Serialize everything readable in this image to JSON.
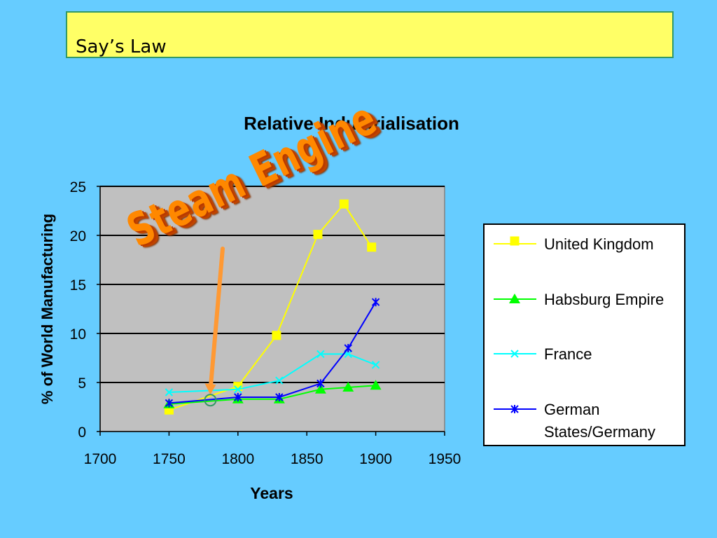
{
  "slide": {
    "title": "Say’s Law",
    "wordart": "Steam Engine"
  },
  "colors": {
    "background": "#66ccff",
    "title_box": "#ffff66",
    "plot_area": "#c0c0c0",
    "arrow": "#ff9933",
    "uk": "#ffff00",
    "habsburg": "#00ff00",
    "france": "#00ffff",
    "germany": "#0000ff"
  },
  "chart_data": {
    "type": "line",
    "title": "Relative Industrialisation",
    "xlabel": "Years",
    "ylabel": "% of World Manufacturing",
    "xlim": [
      1700,
      1950
    ],
    "ylim": [
      0,
      25
    ],
    "xticks": [
      1700,
      1750,
      1800,
      1850,
      1900,
      1950
    ],
    "yticks": [
      0,
      5,
      10,
      15,
      20,
      25
    ],
    "grid": "horizontal",
    "legend": "right",
    "series": [
      {
        "name": "United Kingdom",
        "marker": "square",
        "color": "#ffff00",
        "points": [
          [
            1750,
            2.2
          ],
          [
            1800,
            4.6
          ],
          [
            1828,
            9.8
          ],
          [
            1858,
            20.1
          ],
          [
            1877,
            23.2
          ],
          [
            1897,
            18.8
          ]
        ]
      },
      {
        "name": "Habsburg Empire",
        "marker": "triangle",
        "color": "#00ff00",
        "points": [
          [
            1750,
            2.8
          ],
          [
            1800,
            3.3
          ],
          [
            1830,
            3.3
          ],
          [
            1860,
            4.3
          ],
          [
            1880,
            4.5
          ],
          [
            1900,
            4.7
          ]
        ]
      },
      {
        "name": "France",
        "marker": "x",
        "color": "#00ffff",
        "points": [
          [
            1750,
            4.0
          ],
          [
            1800,
            4.3
          ],
          [
            1830,
            5.2
          ],
          [
            1860,
            7.9
          ],
          [
            1880,
            7.9
          ],
          [
            1900,
            6.8
          ]
        ]
      },
      {
        "name": "German States/Germany",
        "legend_lines": [
          "German",
          "States/Germany"
        ],
        "marker": "star",
        "color": "#0000ff",
        "points": [
          [
            1750,
            2.9
          ],
          [
            1800,
            3.5
          ],
          [
            1830,
            3.5
          ],
          [
            1860,
            4.9
          ],
          [
            1880,
            8.5
          ],
          [
            1900,
            13.2
          ]
        ]
      }
    ],
    "annotation": {
      "point": [
        1780,
        3.2
      ],
      "label": "Steam Engine"
    }
  }
}
